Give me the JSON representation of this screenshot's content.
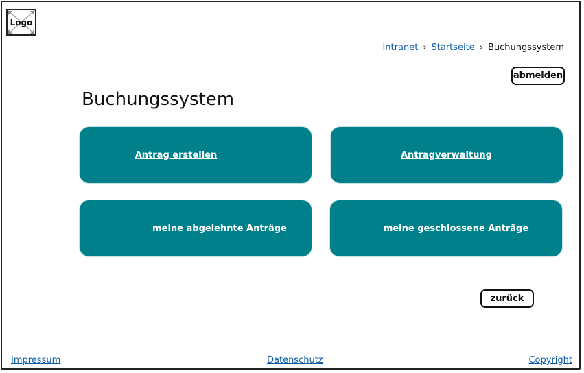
{
  "logo": {
    "label": "Logo"
  },
  "breadcrumb": {
    "items": [
      "Intranet",
      "Startseite"
    ],
    "current": "Buchungssystem",
    "separator": "›"
  },
  "header": {
    "logout_label": "abmelden"
  },
  "page": {
    "title": "Buchungssystem"
  },
  "tiles": [
    {
      "label": "Antrag erstellen"
    },
    {
      "label": "Antragverwaltung"
    },
    {
      "label": "meine abgelehnte Anträge"
    },
    {
      "label": "meine geschlossene Anträge"
    }
  ],
  "actions": {
    "back_label": "zurück"
  },
  "footer": {
    "impressum": "Impressum",
    "datenschutz": "Datenschutz",
    "copyright": "Copyright"
  },
  "colors": {
    "tile": "#00808b",
    "link": "#0b5ba8"
  }
}
